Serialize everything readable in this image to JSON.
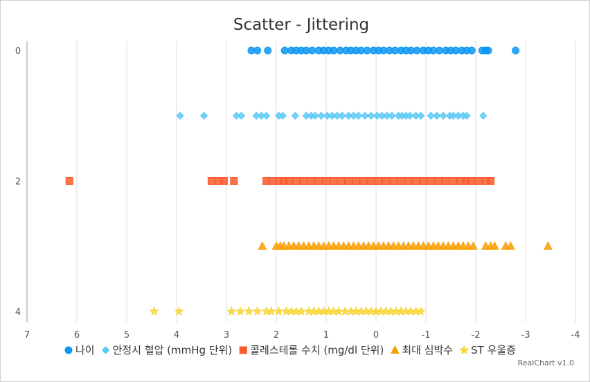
{
  "chart_data": {
    "type": "scatter",
    "title": "Scatter - Jittering",
    "credit": "RealChart v1.0",
    "x_axis": {
      "reversed": true,
      "range": [
        7,
        -4
      ],
      "ticks": [
        "7",
        "6",
        "5",
        "4",
        "3",
        "2",
        "1",
        "0",
        "-1",
        "-2",
        "-3",
        "-4"
      ]
    },
    "y_axis": {
      "range": [
        0,
        4
      ],
      "reversed": true,
      "ticks": [
        "0",
        "2",
        "4"
      ]
    },
    "grid": true,
    "legend_position": "bottom",
    "series": [
      {
        "name": "나이",
        "marker": "circle",
        "color": "#0d96f2",
        "y": 0,
        "x": [
          2.5,
          2.38,
          2.17,
          1.83,
          1.7,
          1.6,
          1.5,
          1.4,
          1.28,
          1.15,
          1.05,
          0.95,
          0.85,
          0.72,
          0.6,
          0.5,
          0.4,
          0.3,
          0.18,
          0.05,
          -0.05,
          -0.15,
          -0.27,
          -0.38,
          -0.5,
          -0.6,
          -0.7,
          -0.82,
          -0.95,
          -1.05,
          -1.15,
          -1.27,
          -1.4,
          -1.5,
          -1.6,
          -1.72,
          -1.82,
          -1.92,
          -2.13,
          -2.2,
          -2.25,
          -2.8
        ]
      },
      {
        "name": "안정시 혈압 (mmHg 단위)",
        "marker": "diamond",
        "color": "#5ccaf5",
        "y": 1,
        "x": [
          3.93,
          3.45,
          2.8,
          2.7,
          2.4,
          2.3,
          2.2,
          1.95,
          1.87,
          1.62,
          1.4,
          1.3,
          1.22,
          1.1,
          0.98,
          0.88,
          0.78,
          0.68,
          0.55,
          0.45,
          0.35,
          0.22,
          0.1,
          -0.02,
          -0.12,
          -0.22,
          -0.32,
          -0.45,
          -0.52,
          -0.6,
          -0.68,
          -0.8,
          -0.9,
          -1.1,
          -1.22,
          -1.35,
          -1.48,
          -1.55,
          -1.65,
          -1.75,
          -1.82,
          -2.15
        ]
      },
      {
        "name": "콜레스테롤 수치 (mg/dl 단위)",
        "marker": "square",
        "color": "#fa5b2c",
        "y": 2,
        "x": [
          6.15,
          3.3,
          3.15,
          3.05,
          2.85,
          2.2,
          2.08,
          1.95,
          1.85,
          1.75,
          1.6,
          1.45,
          1.3,
          1.15,
          1.0,
          0.85,
          0.7,
          0.55,
          0.4,
          0.25,
          0.1,
          -0.05,
          -0.2,
          -0.35,
          -0.5,
          -0.65,
          -0.8,
          -0.95,
          -1.1,
          -1.25,
          -1.4,
          -1.55,
          -1.7,
          -1.8,
          -1.9,
          -2.05,
          -2.2,
          -2.3
        ]
      },
      {
        "name": "최대 심박수",
        "marker": "triangle",
        "color": "#fa9e00",
        "y": 3,
        "x": [
          2.28,
          2.0,
          1.92,
          1.85,
          1.75,
          1.65,
          1.55,
          1.45,
          1.35,
          1.25,
          1.15,
          1.05,
          0.95,
          0.85,
          0.75,
          0.65,
          0.55,
          0.45,
          0.35,
          0.25,
          0.15,
          0.05,
          -0.05,
          -0.15,
          -0.25,
          -0.35,
          -0.45,
          -0.55,
          -0.65,
          -0.75,
          -0.85,
          -0.95,
          -1.05,
          -1.15,
          -1.25,
          -1.35,
          -1.45,
          -1.55,
          -1.65,
          -1.75,
          -1.85,
          -1.95,
          -2.2,
          -2.3,
          -2.38,
          -2.6,
          -2.7,
          -3.45
        ]
      },
      {
        "name": "ST 우울증",
        "marker": "star",
        "color": "#f7d535",
        "y": 4,
        "x": [
          4.45,
          3.95,
          2.9,
          2.72,
          2.55,
          2.38,
          2.2,
          2.1,
          1.95,
          1.8,
          1.7,
          1.6,
          1.5,
          1.35,
          1.25,
          1.15,
          1.05,
          0.95,
          0.85,
          0.75,
          0.62,
          0.5,
          0.4,
          0.3,
          0.2,
          0.1,
          0.0,
          -0.1,
          -0.2,
          -0.3,
          -0.4,
          -0.5,
          -0.6,
          -0.7,
          -0.8,
          -0.9
        ]
      }
    ]
  }
}
